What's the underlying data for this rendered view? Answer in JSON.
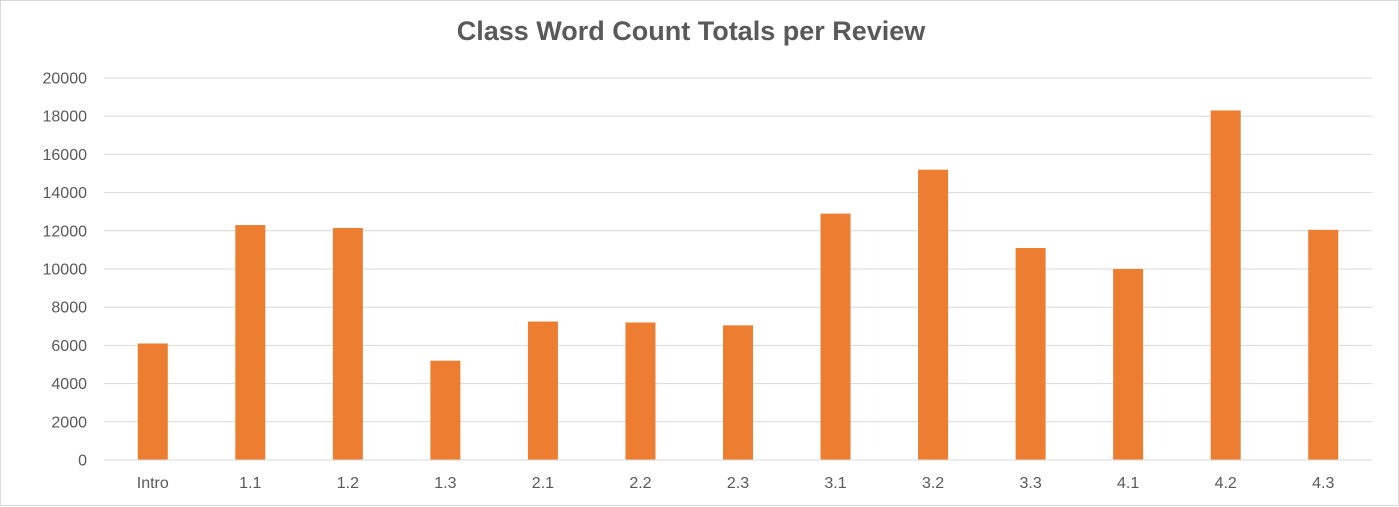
{
  "chart_data": {
    "type": "bar",
    "title": "Class Word Count Totals per Review",
    "xlabel": "",
    "ylabel": "",
    "categories": [
      "Intro",
      "1.1",
      "1.2",
      "1.3",
      "2.1",
      "2.2",
      "2.3",
      "3.1",
      "3.2",
      "3.3",
      "4.1",
      "4.2",
      "4.3"
    ],
    "values": [
      6100,
      12300,
      12150,
      5200,
      7250,
      7200,
      7050,
      12900,
      15200,
      11100,
      10000,
      18300,
      12050
    ],
    "ylim": [
      0,
      20000
    ],
    "yticks": [
      "0",
      "2000",
      "4000",
      "6000",
      "8000",
      "10000",
      "12000",
      "14000",
      "16000",
      "18000",
      "20000"
    ],
    "grid": true,
    "legend": "none",
    "bar_color": "#ED7D31"
  }
}
